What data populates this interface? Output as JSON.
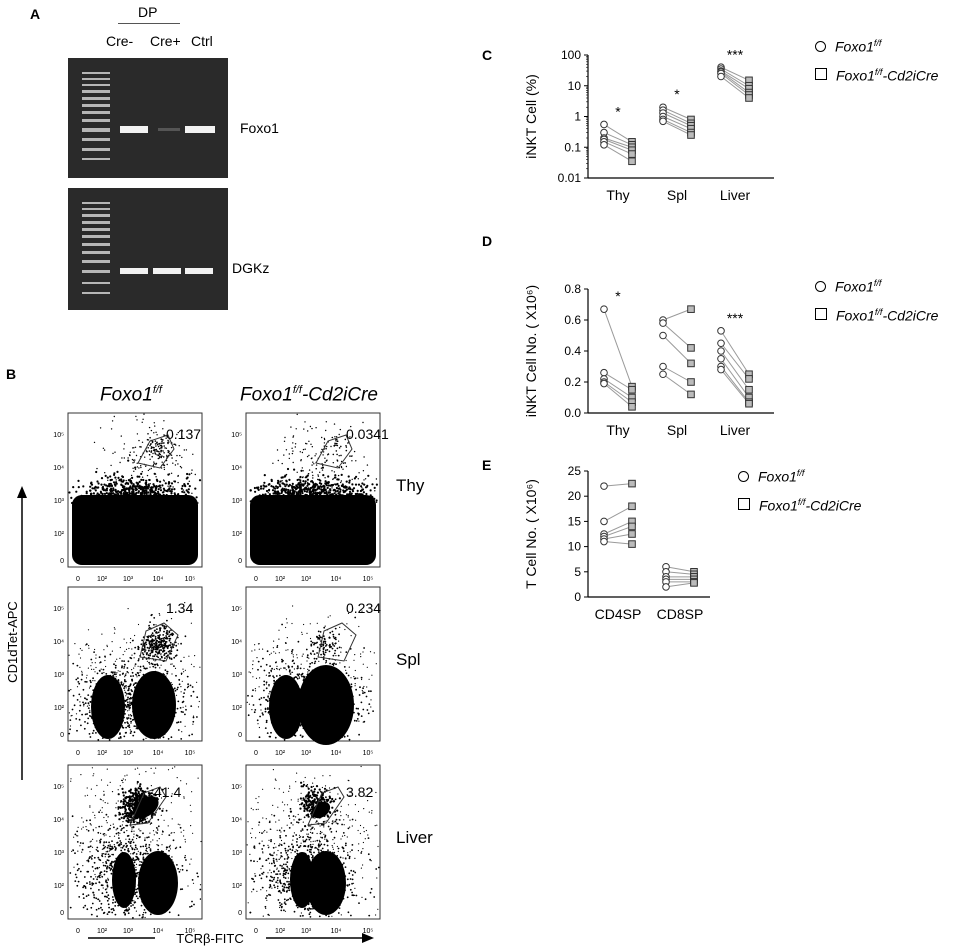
{
  "panelA": {
    "label": "A",
    "dp_label": "DP",
    "lanes": [
      "Cre-",
      "Cre+",
      "Ctrl"
    ],
    "gel1_band": "Foxo1",
    "gel2_band": "DGKz"
  },
  "panelB": {
    "label": "B",
    "col1_title": "Foxo1",
    "col1_sup": "f/f",
    "col2_title": "Foxo1",
    "col2_sup": "f/f",
    "col2_suffix": "-Cd2iCre",
    "y_axis": "CD1dTet-APC",
    "x_axis": "TCRβ-FITC",
    "rows": [
      {
        "tissue": "Thy",
        "wt_pct": "0.137",
        "ko_pct": "0.0341"
      },
      {
        "tissue": "Spl",
        "wt_pct": "1.34",
        "ko_pct": "0.234"
      },
      {
        "tissue": "Liver",
        "wt_pct": "41.4",
        "ko_pct": "3.82"
      }
    ],
    "y_ticks": [
      "10⁵",
      "10⁴",
      "10³",
      "10²",
      "0"
    ],
    "x_ticks": [
      "0",
      "10²",
      "10³",
      "10⁴",
      "10⁵"
    ]
  },
  "legend": {
    "wt_name": "Foxo1",
    "wt_sup": "f/f",
    "ko_name": "Foxo1",
    "ko_sup": "f/f",
    "ko_suffix": "-Cd2iCre"
  },
  "chart_data": [
    {
      "panel": "C",
      "type": "scatter",
      "ylabel": "iNKT Cell (%)",
      "yscale": "log",
      "ylim": [
        0.01,
        100
      ],
      "y_ticks": [
        "0.01",
        "0.1",
        "1",
        "10",
        "100"
      ],
      "categories": [
        "Thy",
        "Spl",
        "Liver"
      ],
      "significance": [
        "*",
        "*",
        "***"
      ],
      "series": [
        {
          "name": "Foxo1f/f",
          "values": [
            [
              0.55,
              0.3,
              0.2,
              0.18,
              0.15,
              0.12
            ],
            [
              2.0,
              1.6,
              1.3,
              1.0,
              0.8,
              0.7
            ],
            [
              40,
              35,
              30,
              28,
              25,
              20
            ]
          ]
        },
        {
          "name": "Foxo1f/f-Cd2iCre",
          "values": [
            [
              0.15,
              0.12,
              0.1,
              0.08,
              0.06,
              0.035
            ],
            [
              0.8,
              0.6,
              0.5,
              0.4,
              0.3,
              0.25
            ],
            [
              15,
              10,
              8,
              6,
              5,
              4
            ]
          ]
        }
      ]
    },
    {
      "panel": "D",
      "type": "scatter",
      "ylabel": "iNKT Cell No. ( X10⁶)",
      "ylim": [
        0,
        0.8
      ],
      "y_ticks": [
        "0.0",
        "0.2",
        "0.4",
        "0.6",
        "0.8"
      ],
      "categories": [
        "Thy",
        "Spl",
        "Liver"
      ],
      "significance": [
        "*",
        "",
        "***"
      ],
      "series": [
        {
          "name": "Foxo1f/f",
          "values": [
            [
              0.67,
              0.26,
              0.22,
              0.2,
              0.19
            ],
            [
              0.6,
              0.58,
              0.5,
              0.3,
              0.25
            ],
            [
              0.53,
              0.45,
              0.4,
              0.35,
              0.3,
              0.28
            ]
          ]
        },
        {
          "name": "Foxo1f/f-Cd2iCre",
          "values": [
            [
              0.17,
              0.15,
              0.1,
              0.07,
              0.04
            ],
            [
              0.67,
              0.42,
              0.32,
              0.2,
              0.12
            ],
            [
              0.25,
              0.22,
              0.15,
              0.1,
              0.07,
              0.06
            ]
          ]
        }
      ]
    },
    {
      "panel": "E",
      "type": "scatter",
      "ylabel": "T Cell No. ( X10⁶)",
      "ylim": [
        0,
        25
      ],
      "y_ticks": [
        "0",
        "5",
        "10",
        "15",
        "20",
        "25"
      ],
      "categories": [
        "CD4SP",
        "CD8SP"
      ],
      "series": [
        {
          "name": "Foxo1f/f",
          "values": [
            [
              22,
              15,
              12.5,
              12,
              11.5,
              11
            ],
            [
              6,
              5,
              4,
              3.5,
              3,
              2
            ]
          ]
        },
        {
          "name": "Foxo1f/f-Cd2iCre",
          "values": [
            [
              22.5,
              18,
              15,
              14,
              12.5,
              10.5
            ],
            [
              5,
              4.5,
              4,
              3.5,
              3,
              2.8
            ]
          ]
        }
      ]
    }
  ]
}
